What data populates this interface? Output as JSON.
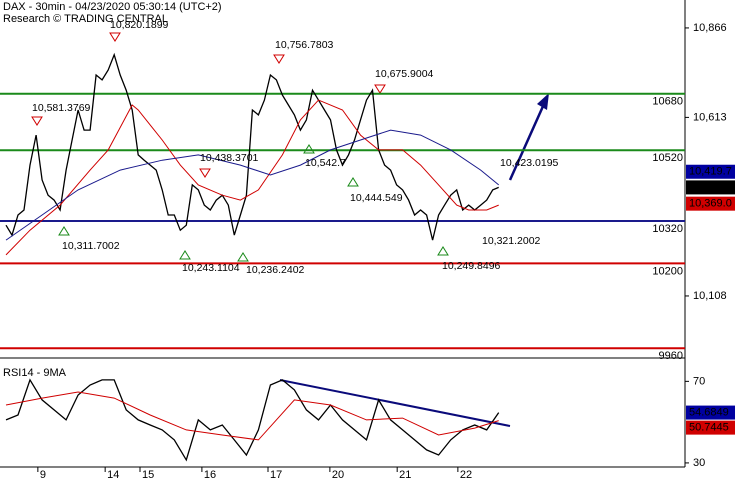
{
  "chart_data": [
    {
      "type": "line",
      "title": "DAX - 30min - 04/23/2020 05:30:14 (UTC+2)",
      "subtitle": "Research © TRADING CENTRAL",
      "xlim": [
        -1,
        113
      ],
      "xticks": [
        {
          "value": 5.3,
          "label": "9"
        },
        {
          "value": 16.5,
          "label": "14"
        },
        {
          "value": 22.3,
          "label": "15"
        },
        {
          "value": 32.6,
          "label": "16"
        },
        {
          "value": 43.6,
          "label": "17"
        },
        {
          "value": 53.9,
          "label": "20"
        },
        {
          "value": 65.1,
          "label": "21"
        },
        {
          "value": 75.2,
          "label": "22"
        }
      ],
      "ylim": [
        9941,
        10945
      ],
      "yticks": [
        {
          "value": 10866,
          "label": "10,866"
        },
        {
          "value": 10613,
          "label": "10,613"
        },
        {
          "value": 10108,
          "label": "10,108"
        }
      ],
      "series": [
        {
          "color": "#000000",
          "values": [
            10308,
            10280,
            10337,
            10351,
            10478,
            10563,
            10436,
            10393,
            10379,
            10351,
            10464,
            10549,
            10634,
            10577,
            10577,
            10733,
            10719,
            10747,
            10790,
            10733,
            10690,
            10634,
            10507,
            10492,
            10478,
            10464,
            10408,
            10337,
            10337,
            10294,
            10308,
            10422,
            10408,
            10365,
            10351,
            10379,
            10393,
            10365,
            10280,
            10337,
            10393,
            10634,
            10620,
            10662,
            10733,
            10719,
            10676,
            10648,
            10620,
            10577,
            10606,
            10690,
            10662,
            10634,
            10606,
            10521,
            10478,
            10507,
            10549,
            10606,
            10662,
            10690,
            10521,
            10478,
            10464,
            10422,
            10408,
            10379,
            10337,
            10351,
            10337,
            10266,
            10337,
            10365,
            10393,
            10408,
            10351,
            10365,
            10351,
            10365,
            10379,
            10408,
            10415
          ]
        },
        {
          "color": "#d00000",
          "x": [
            0,
            4,
            9,
            14,
            17,
            21,
            22,
            26,
            29,
            32,
            36,
            39,
            42,
            46,
            49,
            52,
            56,
            59,
            62,
            66,
            69,
            72,
            75,
            77,
            80,
            82
          ],
          "values": [
            10224,
            10294,
            10365,
            10464,
            10521,
            10648,
            10634,
            10549,
            10478,
            10422,
            10393,
            10379,
            10408,
            10507,
            10606,
            10662,
            10634,
            10563,
            10521,
            10521,
            10478,
            10422,
            10365,
            10351,
            10351,
            10365
          ]
        },
        {
          "color": "#1a1a8c",
          "x": [
            0,
            6,
            12,
            19,
            26,
            32,
            39,
            44,
            49,
            54,
            59,
            64,
            69,
            74,
            79,
            82
          ],
          "values": [
            10266,
            10337,
            10408,
            10464,
            10492,
            10507,
            10478,
            10450,
            10478,
            10521,
            10549,
            10577,
            10563,
            10521,
            10464,
            10422
          ]
        }
      ],
      "levels": [
        {
          "value": 10680,
          "color": "#1a8a1a"
        },
        {
          "value": 10520,
          "color": "#1a8a1a"
        },
        {
          "value": 10320,
          "color": "#1a1a8c"
        },
        {
          "value": 10200,
          "color": "#d00000"
        },
        {
          "value": 9960,
          "color": "#d00000"
        }
      ],
      "price_tags": [
        {
          "value": 10419.7,
          "label": "10,419.7",
          "color": "#0000a0"
        },
        {
          "value": 10415,
          "label": "10,415",
          "color": "#000000"
        },
        {
          "value": 10369.0,
          "label": "10,369.0",
          "color": "#d00000"
        }
      ],
      "annotations": [
        "10,820.1899",
        "10,756.7803",
        "10,675.9004",
        "10,581.3769",
        "10,438.3701",
        "10,542.7",
        "10,423.0195",
        "10,444.549",
        "10,311.7002",
        "10,321.2002",
        "10,243.1104",
        "10,236.2402",
        "10,249.8496"
      ]
    },
    {
      "type": "line",
      "title": "RSI14 - 9MA",
      "ylim": [
        28,
        79
      ],
      "yticks": [
        30,
        70
      ],
      "series": [
        {
          "color": "#000000",
          "x": [
            0,
            2,
            4,
            6,
            8,
            10,
            12,
            14,
            16,
            18,
            20,
            22,
            24,
            26,
            28,
            30,
            32,
            34,
            36,
            38,
            40,
            42,
            44,
            46,
            48,
            50,
            52,
            54,
            56,
            58,
            60,
            62,
            64,
            66,
            68,
            70,
            72,
            74,
            76,
            78,
            80,
            82
          ],
          "values": [
            51.1,
            53.5,
            70.7,
            60.9,
            56.0,
            51.1,
            63.3,
            68.2,
            70.7,
            70.7,
            56.0,
            51.1,
            48.6,
            46.2,
            41.3,
            31.5,
            51.1,
            46.2,
            48.6,
            41.3,
            33.9,
            46.2,
            68.2,
            70.7,
            65.8,
            56.0,
            51.1,
            58.4,
            51.1,
            46.2,
            41.3,
            60.9,
            51.1,
            46.2,
            41.3,
            36.4,
            33.9,
            41.3,
            46.2,
            48.6,
            46.2,
            54.68
          ]
        },
        {
          "color": "#d00000",
          "x": [
            0,
            6,
            12,
            18,
            24,
            30,
            36,
            42,
            48,
            54,
            60,
            66,
            72,
            78,
            82
          ],
          "values": [
            58.4,
            61.8,
            64.8,
            61.8,
            53.5,
            46.2,
            43.7,
            41.3,
            60.9,
            58.4,
            51.1,
            52.0,
            43.7,
            47.1,
            50.74
          ]
        }
      ],
      "price_tags": [
        {
          "value": 54.6849,
          "label": "54.6849",
          "color": "#0000a0"
        },
        {
          "value": 50.7445,
          "label": "50.7445",
          "color": "#d00000"
        }
      ]
    }
  ]
}
